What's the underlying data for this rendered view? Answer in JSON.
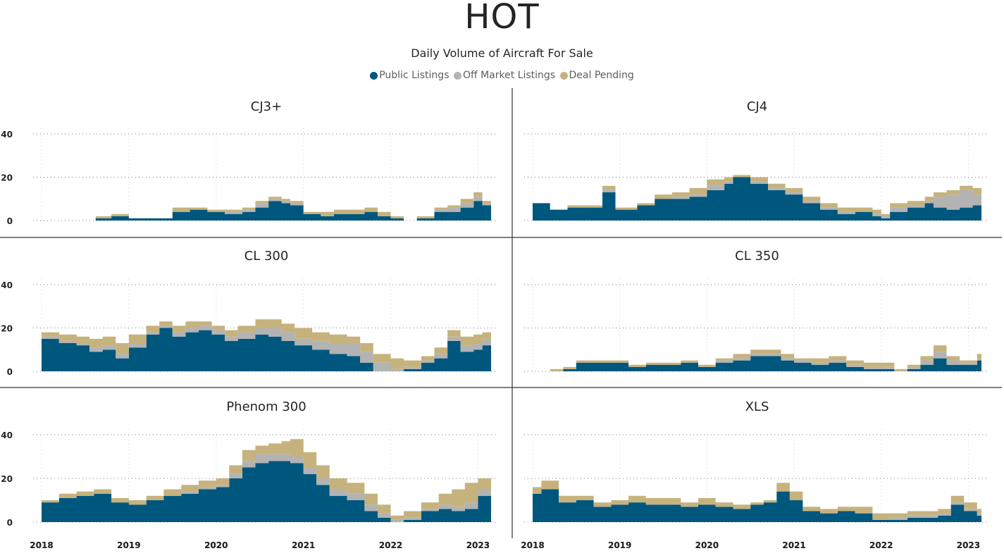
{
  "header": {
    "title": "HOT",
    "subtitle": "Daily Volume of Aircraft For Sale"
  },
  "legend": [
    {
      "name": "Public Listings",
      "color": "#00577E"
    },
    {
      "name": "Off Market Listings",
      "color": "#B3B3B3"
    },
    {
      "name": "Deal Pending",
      "color": "#C6B27D"
    }
  ],
  "chart_data": [
    {
      "type": "area",
      "stacked": true,
      "title": "CJ3+",
      "x": [
        2018.62,
        2018.8,
        2019.0,
        2019.3,
        2019.5,
        2019.7,
        2019.9,
        2020.1,
        2020.3,
        2020.45,
        2020.6,
        2020.75,
        2020.85,
        2021.0,
        2021.2,
        2021.35,
        2021.55,
        2021.7,
        2021.85,
        2022.0,
        2022.15,
        2022.3,
        2022.5,
        2022.65,
        2022.8,
        2022.95,
        2023.05,
        2023.15
      ],
      "series": [
        {
          "name": "Public Listings",
          "values": [
            1,
            2,
            1,
            1,
            4,
            5,
            4,
            3,
            4,
            6,
            9,
            8,
            7,
            3,
            2,
            3,
            3,
            4,
            2,
            1,
            0,
            1,
            4,
            4,
            6,
            9,
            7,
            6
          ]
        },
        {
          "name": "Off Market Listings",
          "values": [
            0,
            0,
            0,
            0,
            0,
            0,
            0,
            1,
            1,
            2,
            1,
            1,
            1,
            0,
            0,
            0,
            0,
            0,
            0,
            0,
            0,
            0,
            1,
            2,
            2,
            2,
            1,
            1
          ]
        },
        {
          "name": "Deal Pending",
          "values": [
            1,
            1,
            0,
            0,
            2,
            1,
            1,
            1,
            1,
            1,
            1,
            1,
            1,
            1,
            2,
            2,
            2,
            2,
            2,
            1,
            0,
            1,
            1,
            1,
            2,
            2,
            1,
            1
          ]
        }
      ],
      "ylim": [
        0,
        45
      ],
      "yticks": [
        0,
        20,
        40
      ],
      "xticks": [
        2018,
        2019,
        2020,
        2021,
        2022,
        2023
      ]
    },
    {
      "type": "area",
      "stacked": true,
      "title": "CJ4",
      "x": [
        2018.0,
        2018.2,
        2018.4,
        2018.6,
        2018.8,
        2018.95,
        2019.2,
        2019.4,
        2019.6,
        2019.8,
        2020.0,
        2020.2,
        2020.3,
        2020.5,
        2020.7,
        2020.9,
        2021.1,
        2021.3,
        2021.5,
        2021.7,
        2021.9,
        2022.0,
        2022.1,
        2022.3,
        2022.5,
        2022.6,
        2022.75,
        2022.9,
        2023.05,
        2023.15
      ],
      "series": [
        {
          "name": "Public Listings",
          "values": [
            8,
            5,
            6,
            6,
            13,
            5,
            7,
            10,
            10,
            11,
            14,
            17,
            20,
            17,
            14,
            12,
            8,
            5,
            3,
            4,
            2,
            1,
            4,
            6,
            8,
            6,
            5,
            6,
            7,
            7
          ]
        },
        {
          "name": "Off Market Listings",
          "values": [
            0,
            0,
            0,
            0,
            1,
            0,
            0,
            0,
            1,
            1,
            2,
            1,
            0,
            1,
            1,
            1,
            1,
            1,
            1,
            0,
            1,
            1,
            2,
            1,
            1,
            5,
            7,
            8,
            5,
            2
          ]
        },
        {
          "name": "Deal Pending",
          "values": [
            0,
            0,
            1,
            1,
            2,
            1,
            1,
            2,
            2,
            3,
            3,
            2,
            1,
            2,
            2,
            2,
            2,
            2,
            2,
            2,
            2,
            1,
            2,
            2,
            2,
            2,
            2,
            2,
            3,
            1
          ]
        }
      ],
      "ylim": [
        0,
        45
      ],
      "yticks": [
        0,
        20,
        40
      ],
      "xticks": [
        2018,
        2019,
        2020,
        2021,
        2022,
        2023
      ]
    },
    {
      "type": "area",
      "stacked": true,
      "title": "CL 300",
      "x": [
        2018.0,
        2018.2,
        2018.4,
        2018.55,
        2018.7,
        2018.85,
        2019.0,
        2019.2,
        2019.35,
        2019.5,
        2019.65,
        2019.8,
        2019.95,
        2020.1,
        2020.25,
        2020.45,
        2020.6,
        2020.75,
        2020.9,
        2021.1,
        2021.3,
        2021.5,
        2021.65,
        2021.8,
        2022.0,
        2022.15,
        2022.35,
        2022.5,
        2022.65,
        2022.8,
        2022.95,
        2023.05,
        2023.15
      ],
      "series": [
        {
          "name": "Public Listings",
          "values": [
            15,
            13,
            12,
            9,
            10,
            6,
            11,
            17,
            20,
            16,
            18,
            19,
            17,
            14,
            15,
            17,
            16,
            14,
            12,
            10,
            8,
            7,
            4,
            0,
            0,
            1,
            4,
            6,
            14,
            9,
            10,
            12,
            14
          ]
        },
        {
          "name": "Off Market Listings",
          "values": [
            1,
            1,
            1,
            2,
            2,
            2,
            2,
            1,
            1,
            2,
            2,
            2,
            2,
            2,
            3,
            3,
            4,
            4,
            3,
            4,
            5,
            6,
            5,
            4,
            1,
            1,
            1,
            2,
            2,
            3,
            3,
            3,
            3
          ]
        },
        {
          "name": "Deal Pending",
          "values": [
            2,
            3,
            3,
            4,
            4,
            5,
            4,
            3,
            2,
            3,
            3,
            2,
            2,
            3,
            3,
            4,
            4,
            4,
            5,
            4,
            4,
            3,
            4,
            4,
            5,
            3,
            2,
            3,
            3,
            4,
            4,
            3,
            4
          ]
        }
      ],
      "ylim": [
        0,
        45
      ],
      "yticks": [
        0,
        20,
        40
      ],
      "xticks": []
    },
    {
      "type": "area",
      "stacked": true,
      "title": "CL 350",
      "x": [
        2018.2,
        2018.35,
        2018.5,
        2018.65,
        2018.8,
        2018.95,
        2019.1,
        2019.3,
        2019.5,
        2019.7,
        2019.9,
        2020.1,
        2020.3,
        2020.5,
        2020.7,
        2020.85,
        2021.0,
        2021.2,
        2021.4,
        2021.6,
        2021.8,
        2022.0,
        2022.15,
        2022.3,
        2022.45,
        2022.6,
        2022.75,
        2022.9,
        2023.0,
        2023.1,
        2023.15
      ],
      "series": [
        {
          "name": "Public Listings",
          "values": [
            0,
            1,
            4,
            4,
            4,
            4,
            2,
            3,
            3,
            4,
            2,
            4,
            5,
            7,
            7,
            5,
            4,
            3,
            4,
            2,
            1,
            1,
            0,
            1,
            3,
            6,
            3,
            3,
            3,
            5,
            8
          ]
        },
        {
          "name": "Off Market Listings",
          "values": [
            0,
            0,
            0,
            0,
            0,
            0,
            0,
            0,
            0,
            0,
            0,
            1,
            1,
            1,
            1,
            1,
            1,
            1,
            1,
            1,
            1,
            1,
            0,
            1,
            2,
            3,
            2,
            1,
            1,
            1,
            1
          ]
        },
        {
          "name": "Deal Pending",
          "values": [
            1,
            1,
            1,
            1,
            1,
            1,
            1,
            1,
            1,
            1,
            1,
            1,
            2,
            2,
            2,
            2,
            1,
            2,
            2,
            2,
            2,
            2,
            1,
            1,
            2,
            3,
            2,
            1,
            1,
            2,
            3
          ]
        }
      ],
      "ylim": [
        0,
        45
      ],
      "yticks": [
        0,
        20,
        40
      ],
      "xticks": []
    },
    {
      "type": "area",
      "stacked": true,
      "title": "Phenom 300",
      "x": [
        2018.0,
        2018.2,
        2018.4,
        2018.6,
        2018.8,
        2019.0,
        2019.2,
        2019.4,
        2019.6,
        2019.8,
        2020.0,
        2020.15,
        2020.3,
        2020.45,
        2020.6,
        2020.75,
        2020.85,
        2021.0,
        2021.15,
        2021.3,
        2021.5,
        2021.7,
        2021.85,
        2022.0,
        2022.15,
        2022.35,
        2022.55,
        2022.7,
        2022.85,
        2023.0,
        2023.15
      ],
      "series": [
        {
          "name": "Public Listings",
          "values": [
            9,
            11,
            12,
            13,
            9,
            8,
            10,
            12,
            13,
            15,
            16,
            20,
            25,
            27,
            28,
            28,
            27,
            22,
            17,
            12,
            10,
            5,
            2,
            0,
            1,
            5,
            6,
            5,
            6,
            12,
            14
          ]
        },
        {
          "name": "Off Market Listings",
          "values": [
            0,
            0,
            0,
            0,
            0,
            0,
            0,
            0,
            1,
            1,
            1,
            2,
            3,
            4,
            3,
            3,
            3,
            3,
            3,
            3,
            3,
            3,
            2,
            1,
            1,
            1,
            2,
            2,
            3,
            3,
            3
          ]
        },
        {
          "name": "Deal Pending",
          "values": [
            1,
            2,
            2,
            2,
            2,
            2,
            2,
            3,
            3,
            3,
            3,
            4,
            5,
            4,
            5,
            6,
            8,
            7,
            6,
            5,
            5,
            5,
            4,
            2,
            3,
            3,
            5,
            8,
            9,
            5,
            3
          ]
        }
      ],
      "ylim": [
        0,
        45
      ],
      "yticks": [
        0,
        20,
        40
      ],
      "xticks": [
        "2018",
        "2019",
        "2020",
        "2021",
        "2022",
        "2023"
      ]
    },
    {
      "type": "area",
      "stacked": true,
      "title": "XLS",
      "x": [
        2018.0,
        2018.1,
        2018.3,
        2018.5,
        2018.7,
        2018.9,
        2019.1,
        2019.3,
        2019.5,
        2019.7,
        2019.9,
        2020.1,
        2020.3,
        2020.5,
        2020.65,
        2020.8,
        2020.95,
        2021.1,
        2021.3,
        2021.5,
        2021.7,
        2021.9,
        2022.1,
        2022.3,
        2022.5,
        2022.65,
        2022.8,
        2022.95,
        2023.1,
        2023.15
      ],
      "series": [
        {
          "name": "Public Listings",
          "values": [
            13,
            15,
            9,
            10,
            7,
            8,
            9,
            8,
            8,
            7,
            8,
            7,
            6,
            8,
            9,
            14,
            10,
            5,
            4,
            5,
            4,
            1,
            1,
            2,
            2,
            3,
            8,
            5,
            3,
            3
          ]
        },
        {
          "name": "Off Market Listings",
          "values": [
            0,
            0,
            0,
            0,
            0,
            0,
            0,
            0,
            0,
            0,
            0,
            0,
            0,
            0,
            0,
            0,
            0,
            0,
            0,
            0,
            0,
            0,
            1,
            1,
            1,
            1,
            1,
            1,
            1,
            1
          ]
        },
        {
          "name": "Deal Pending",
          "values": [
            3,
            4,
            3,
            2,
            2,
            2,
            3,
            3,
            3,
            2,
            3,
            2,
            2,
            1,
            1,
            4,
            4,
            2,
            2,
            2,
            3,
            3,
            2,
            2,
            2,
            2,
            3,
            3,
            2,
            2
          ]
        }
      ],
      "ylim": [
        0,
        45
      ],
      "yticks": [
        0,
        20,
        40
      ],
      "xticks": [
        "2018",
        "2019",
        "2020",
        "2021",
        "2022",
        "2023"
      ]
    }
  ]
}
